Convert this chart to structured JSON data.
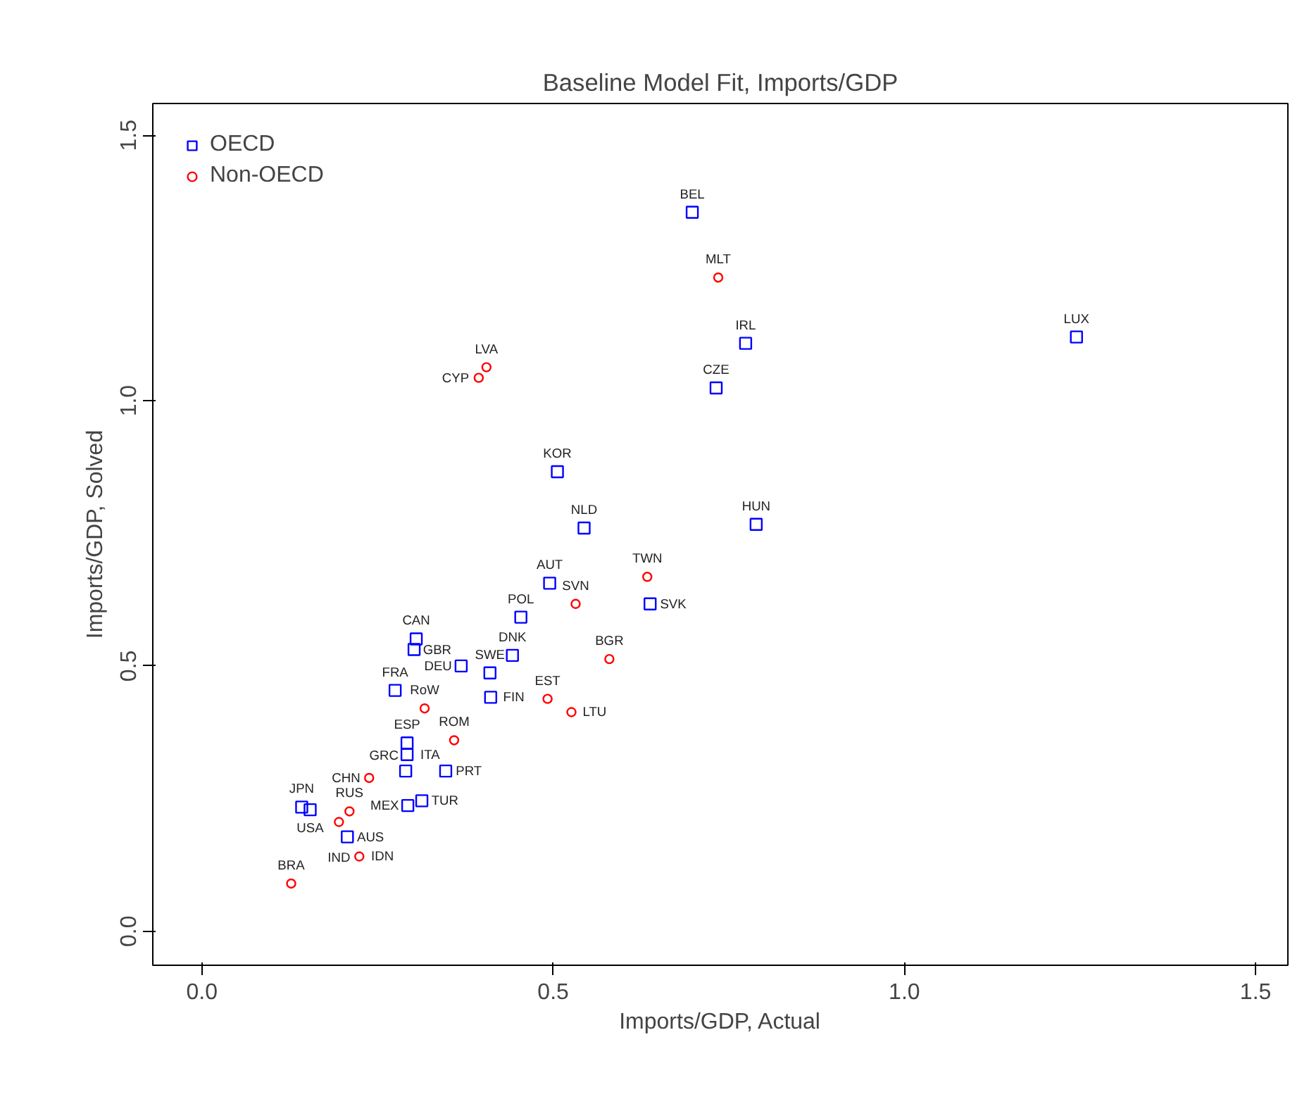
{
  "chart_data": {
    "type": "scatter",
    "title": "Baseline Model Fit, Imports/GDP",
    "xlabel": "Imports/GDP, Actual",
    "ylabel": "Imports/GDP, Solved",
    "xlim": [
      -0.07,
      1.546
    ],
    "ylim": [
      -0.064,
      1.56
    ],
    "xticks": [
      {
        "value": 0,
        "label": "0.0"
      },
      {
        "value": 0.5,
        "label": "0.5"
      },
      {
        "value": 1,
        "label": "1.0"
      },
      {
        "value": 1.5,
        "label": "1.5"
      }
    ],
    "yticks": [
      {
        "value": 0,
        "label": "0.0"
      },
      {
        "value": 0.5,
        "label": "0.5"
      },
      {
        "value": 1,
        "label": "1.0"
      },
      {
        "value": 1.5,
        "label": "1.5"
      }
    ],
    "grid": false,
    "legend": "top left",
    "series": [
      {
        "name": "OECD",
        "color": "#0000ff",
        "marker": "square",
        "x": [
          0.698,
          0.774,
          0.732,
          1.245,
          0.506,
          0.544,
          0.789,
          0.495,
          0.638,
          0.454,
          0.442,
          0.411,
          0.41,
          0.305,
          0.302,
          0.369,
          0.275,
          0.292,
          0.292,
          0.29,
          0.293,
          0.313,
          0.347,
          0.142,
          0.154,
          0.207
        ],
        "values": [
          1.355,
          1.108,
          1.024,
          1.12,
          0.866,
          0.76,
          0.767,
          0.656,
          0.617,
          0.592,
          0.52,
          0.441,
          0.487,
          0.551,
          0.531,
          0.5,
          0.454,
          0.355,
          0.333,
          0.302,
          0.237,
          0.246,
          0.302,
          0.234,
          0.229,
          0.178
        ]
      },
      {
        "name": "Non-OECD",
        "color": "#ff0000",
        "marker": "circle",
        "x": [
          0.735,
          0.405,
          0.394,
          0.634,
          0.532,
          0.58,
          0.492,
          0.526,
          0.317,
          0.359,
          0.238,
          0.21,
          0.195,
          0.224,
          0.127
        ],
        "values": [
          1.232,
          1.063,
          1.043,
          0.668,
          0.617,
          0.513,
          0.438,
          0.413,
          0.42,
          0.36,
          0.289,
          0.226,
          0.206,
          0.141,
          0.09
        ]
      }
    ],
    "annotations": [
      {
        "text": "BEL",
        "x": 0.698,
        "y": 1.355
      },
      {
        "text": "IRL",
        "x": 0.774,
        "y": 1.108
      },
      {
        "text": "CZE",
        "x": 0.732,
        "y": 1.024
      },
      {
        "text": "LUX",
        "x": 1.245,
        "y": 1.12
      },
      {
        "text": "KOR",
        "x": 0.506,
        "y": 0.866
      },
      {
        "text": "NLD",
        "x": 0.544,
        "y": 0.76
      },
      {
        "text": "HUN",
        "x": 0.789,
        "y": 0.767
      },
      {
        "text": "AUT",
        "x": 0.495,
        "y": 0.656
      },
      {
        "text": "SVK",
        "x": 0.638,
        "y": 0.617
      },
      {
        "text": "POL",
        "x": 0.454,
        "y": 0.592
      },
      {
        "text": "DNK",
        "x": 0.442,
        "y": 0.52
      },
      {
        "text": "FIN",
        "x": 0.411,
        "y": 0.441
      },
      {
        "text": "SWE",
        "x": 0.41,
        "y": 0.487
      },
      {
        "text": "CAN",
        "x": 0.305,
        "y": 0.551
      },
      {
        "text": "GBR",
        "x": 0.302,
        "y": 0.531
      },
      {
        "text": "DEU",
        "x": 0.369,
        "y": 0.5
      },
      {
        "text": "FRA",
        "x": 0.275,
        "y": 0.454
      },
      {
        "text": "ESP",
        "x": 0.292,
        "y": 0.355
      },
      {
        "text": "ITA",
        "x": 0.292,
        "y": 0.333
      },
      {
        "text": "GRC",
        "x": 0.29,
        "y": 0.302
      },
      {
        "text": "MEX",
        "x": 0.293,
        "y": 0.237
      },
      {
        "text": "TUR",
        "x": 0.313,
        "y": 0.246
      },
      {
        "text": "PRT",
        "x": 0.347,
        "y": 0.302
      },
      {
        "text": "JPN",
        "x": 0.142,
        "y": 0.234
      },
      {
        "text": "USA",
        "x": 0.154,
        "y": 0.229
      },
      {
        "text": "AUS",
        "x": 0.207,
        "y": 0.178
      },
      {
        "text": "MLT",
        "x": 0.735,
        "y": 1.232
      },
      {
        "text": "LVA",
        "x": 0.405,
        "y": 1.063
      },
      {
        "text": "CYP",
        "x": 0.394,
        "y": 1.043
      },
      {
        "text": "TWN",
        "x": 0.634,
        "y": 0.668
      },
      {
        "text": "SVN",
        "x": 0.532,
        "y": 0.617
      },
      {
        "text": "BGR",
        "x": 0.58,
        "y": 0.513
      },
      {
        "text": "EST",
        "x": 0.492,
        "y": 0.438
      },
      {
        "text": "LTU",
        "x": 0.526,
        "y": 0.413
      },
      {
        "text": "RoW",
        "x": 0.317,
        "y": 0.42
      },
      {
        "text": "ROM",
        "x": 0.359,
        "y": 0.36
      },
      {
        "text": "CHN",
        "x": 0.238,
        "y": 0.289
      },
      {
        "text": "RUS",
        "x": 0.21,
        "y": 0.226
      },
      {
        "text": "IND",
        "x": 0.195,
        "y": 0.206
      },
      {
        "text": "IDN",
        "x": 0.224,
        "y": 0.141
      },
      {
        "text": "BRA",
        "x": 0.127,
        "y": 0.09
      }
    ]
  }
}
